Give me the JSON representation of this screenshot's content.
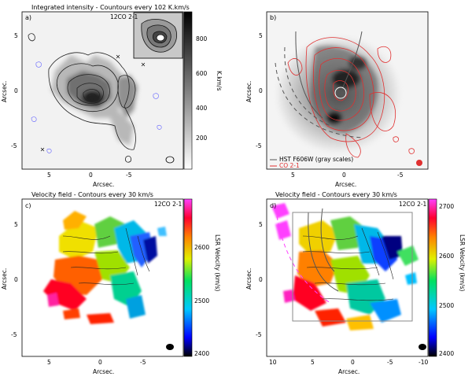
{
  "panels": {
    "a": {
      "title": "Integrated intensity - Countours every 102 K.km/s",
      "label": "a)",
      "tag": "12CO 2-1",
      "xlabel": "Arcsec.",
      "ylabel": "Arcsec.",
      "cbar_label": "K.km/s",
      "cbar_ticks": [
        "800",
        "600",
        "400",
        "200"
      ],
      "xticks": [
        "5",
        "0",
        "-5"
      ],
      "yticks": [
        "5",
        "0",
        "-5"
      ]
    },
    "b": {
      "label": "b)",
      "xlabel": "Arcsec.",
      "ylabel": "Arcsec.",
      "xticks": [
        "5",
        "0",
        "-5"
      ],
      "yticks": [
        "5",
        "0",
        "-5"
      ],
      "legend": [
        "HST F606W (gray scales)",
        "CO 2-1"
      ]
    },
    "c": {
      "title": "Velocity field - Contours every 30 km/s",
      "label": "c)",
      "tag": "12CO 2-1",
      "xlabel": "Arcsec.",
      "ylabel": "Arcsec.",
      "cbar_label": "LSR Velocity (km/s)",
      "cbar_ticks": [
        "2600",
        "2500",
        "2400"
      ],
      "xticks": [
        "5",
        "0",
        "-5"
      ],
      "yticks": [
        "5",
        "0",
        "-5"
      ]
    },
    "d": {
      "title": "Velocity field - Contours every 30 km/s",
      "label": "d)",
      "tag": "12CO 2-1",
      "xlabel": "Arcsec.",
      "ylabel": "Arcsec.",
      "cbar_label": "LSR Velocity (km/s)",
      "cbar_ticks": [
        "2700",
        "2600",
        "2500",
        "2400"
      ],
      "xticks": [
        "10",
        "5",
        "0",
        "-5",
        "-10"
      ],
      "yticks": [
        "5",
        "0",
        "-5"
      ]
    }
  },
  "colors": {
    "co_contour": "#e03030",
    "neg_contour": "#6060ff",
    "gray_contour": "#222222"
  }
}
